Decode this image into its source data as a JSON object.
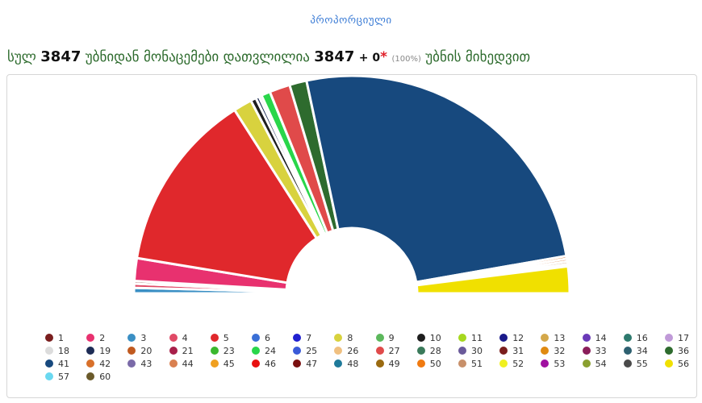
{
  "header": {
    "tab_label": "პროპორციული",
    "total_prefix": "სულ",
    "total_stations": "3847",
    "mid_text": "უბნიდან მონაცემები დათვლილია",
    "counted": "3847",
    "plus_text": "+ 0",
    "star": "*",
    "percent": "(100%)",
    "suffix": "უბნის მიხედვით"
  },
  "chart_data": {
    "type": "pie",
    "style": "semicircle",
    "title": "",
    "slices": [
      {
        "label": "3",
        "value": 0.8,
        "color": "#3a8fc4"
      },
      {
        "label": "4",
        "value": 0.6,
        "color": "#e04a66"
      },
      {
        "label": "1",
        "value": 0.4,
        "color": "#7a1e1e"
      },
      {
        "label": "2",
        "value": 3.3,
        "color": "#e8316f"
      },
      {
        "label": "5",
        "value": 26.2,
        "color": "#e0282c"
      },
      {
        "label": "8",
        "value": 2.7,
        "color": "#d8d23e"
      },
      {
        "label": "10",
        "value": 0.8,
        "color": "#1e1e1e"
      },
      {
        "label": "19",
        "value": 0.5,
        "color": "#1d2c55"
      },
      {
        "label": "18",
        "value": 0.4,
        "color": "#dcdcdc"
      },
      {
        "label": "24",
        "value": 1.3,
        "color": "#29d64a"
      },
      {
        "label": "27",
        "value": 3.0,
        "color": "#e04a4a"
      },
      {
        "label": "36",
        "value": 2.5,
        "color": "#2e6b2e"
      },
      {
        "label": "41",
        "value": 50.2,
        "color": "#17497e"
      },
      {
        "label": "42",
        "value": 0.4,
        "color": "#d8702a"
      },
      {
        "label": "44",
        "value": 0.4,
        "color": "#d98050"
      },
      {
        "label": "51",
        "value": 0.4,
        "color": "#c8906a"
      },
      {
        "label": "26",
        "value": 0.3,
        "color": "#f0c080"
      },
      {
        "label": "56",
        "value": 3.9,
        "color": "#f0e000"
      }
    ]
  },
  "legend": [
    {
      "label": "1",
      "color": "#7a1e1e"
    },
    {
      "label": "2",
      "color": "#e8316f"
    },
    {
      "label": "3",
      "color": "#3a8fc4"
    },
    {
      "label": "4",
      "color": "#e04a66"
    },
    {
      "label": "5",
      "color": "#e0282c"
    },
    {
      "label": "6",
      "color": "#3a6fd6"
    },
    {
      "label": "7",
      "color": "#2020d0"
    },
    {
      "label": "8",
      "color": "#d8d23e"
    },
    {
      "label": "9",
      "color": "#5cb85c"
    },
    {
      "label": "10",
      "color": "#1e1e1e"
    },
    {
      "label": "11",
      "color": "#a6d81e"
    },
    {
      "label": "12",
      "color": "#1a1a8a"
    },
    {
      "label": "13",
      "color": "#d4a84a"
    },
    {
      "label": "14",
      "color": "#6a3ab8"
    },
    {
      "label": "16",
      "color": "#2e7a6e"
    },
    {
      "label": "17",
      "color": "#c09ad8"
    },
    {
      "label": "18",
      "color": "#dcdcdc"
    },
    {
      "label": "19",
      "color": "#1d2c55"
    },
    {
      "label": "20",
      "color": "#c05a20"
    },
    {
      "label": "21",
      "color": "#a8204a"
    },
    {
      "label": "23",
      "color": "#3ab82e"
    },
    {
      "label": "24",
      "color": "#29d64a"
    },
    {
      "label": "25",
      "color": "#3a5ad8"
    },
    {
      "label": "26",
      "color": "#f0c080"
    },
    {
      "label": "27",
      "color": "#e04a4a"
    },
    {
      "label": "28",
      "color": "#3a7a5a"
    },
    {
      "label": "30",
      "color": "#6a5a9a"
    },
    {
      "label": "31",
      "color": "#7a1e1e"
    },
    {
      "label": "32",
      "color": "#e08a10"
    },
    {
      "label": "33",
      "color": "#8a1e5a"
    },
    {
      "label": "34",
      "color": "#2e6070"
    },
    {
      "label": "36",
      "color": "#2e6b2e"
    },
    {
      "label": "41",
      "color": "#17497e"
    },
    {
      "label": "42",
      "color": "#d8702a"
    },
    {
      "label": "43",
      "color": "#7a6aa8"
    },
    {
      "label": "44",
      "color": "#d98050"
    },
    {
      "label": "45",
      "color": "#f0a020"
    },
    {
      "label": "46",
      "color": "#e81010"
    },
    {
      "label": "47",
      "color": "#7a1010"
    },
    {
      "label": "48",
      "color": "#1e7a9a"
    },
    {
      "label": "49",
      "color": "#9a6a10"
    },
    {
      "label": "50",
      "color": "#f07a10"
    },
    {
      "label": "51",
      "color": "#c8906a"
    },
    {
      "label": "52",
      "color": "#f0f020"
    },
    {
      "label": "53",
      "color": "#a010a0"
    },
    {
      "label": "54",
      "color": "#8aa030"
    },
    {
      "label": "55",
      "color": "#4a4a4a"
    },
    {
      "label": "56",
      "color": "#f0e000"
    },
    {
      "label": "57",
      "color": "#6ad8f0"
    },
    {
      "label": "60",
      "color": "#6a5a2a"
    }
  ]
}
